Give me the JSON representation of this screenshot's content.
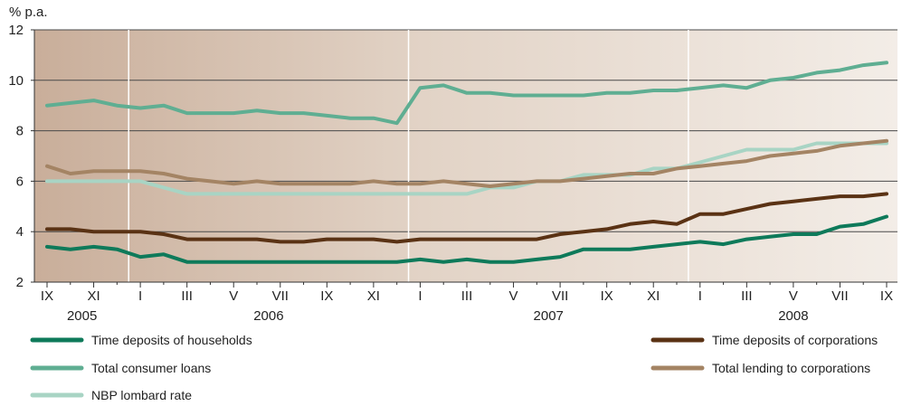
{
  "chart_data": {
    "type": "line",
    "ylabel": "% p.a.",
    "ylim": [
      2,
      12
    ],
    "yticks": [
      2,
      4,
      6,
      8,
      10,
      12
    ],
    "grid": true,
    "x": [
      "IX 2005",
      "X 2005",
      "XI 2005",
      "XII 2005",
      "I 2006",
      "II 2006",
      "III 2006",
      "IV 2006",
      "V 2006",
      "VI 2006",
      "VII 2006",
      "VIII 2006",
      "IX 2006",
      "X 2006",
      "XI 2006",
      "XII 2006",
      "I 2007",
      "II 2007",
      "III 2007",
      "IV 2007",
      "V 2007",
      "VI 2007",
      "VII 2007",
      "VIII 2007",
      "IX 2007",
      "X 2007",
      "XI 2007",
      "XII 2007",
      "I 2008",
      "II 2008",
      "III 2008",
      "IV 2008",
      "V 2008",
      "VI 2008",
      "VII 2008",
      "VIII 2008",
      "IX 2008"
    ],
    "xtick_labels": [
      "IX",
      "XI",
      "I",
      "III",
      "V",
      "VII",
      "IX",
      "XI",
      "I",
      "III",
      "V",
      "VII",
      "IX",
      "XI",
      "I",
      "III",
      "V",
      "VII",
      "IX"
    ],
    "years": [
      "2005",
      "2006",
      "2007",
      "2008"
    ],
    "series": [
      {
        "name": "Time deposits of households",
        "color": "#0e7a5a",
        "values": [
          3.4,
          3.3,
          3.4,
          3.3,
          3.0,
          3.1,
          2.8,
          2.8,
          2.8,
          2.8,
          2.8,
          2.8,
          2.8,
          2.8,
          2.8,
          2.8,
          2.9,
          2.8,
          2.9,
          2.8,
          2.8,
          2.9,
          3.0,
          3.3,
          3.3,
          3.3,
          3.4,
          3.5,
          3.6,
          3.5,
          3.7,
          3.8,
          3.9,
          3.9,
          4.2,
          4.3,
          4.6
        ]
      },
      {
        "name": "Total consumer loans",
        "color": "#5fae92",
        "values": [
          9.0,
          9.1,
          9.2,
          9.0,
          8.9,
          9.0,
          8.7,
          8.7,
          8.7,
          8.8,
          8.7,
          8.7,
          8.6,
          8.5,
          8.5,
          8.3,
          9.7,
          9.8,
          9.5,
          9.5,
          9.4,
          9.4,
          9.4,
          9.4,
          9.5,
          9.5,
          9.6,
          9.6,
          9.7,
          9.8,
          9.7,
          10.0,
          10.1,
          10.3,
          10.4,
          10.6,
          10.7
        ]
      },
      {
        "name": "NBP lombard rate",
        "color": "#a8d4c4",
        "values": [
          6.0,
          6.0,
          6.0,
          6.0,
          6.0,
          5.75,
          5.5,
          5.5,
          5.5,
          5.5,
          5.5,
          5.5,
          5.5,
          5.5,
          5.5,
          5.5,
          5.5,
          5.5,
          5.5,
          5.75,
          5.75,
          6.0,
          6.0,
          6.25,
          6.25,
          6.25,
          6.5,
          6.5,
          6.75,
          7.0,
          7.25,
          7.25,
          7.25,
          7.5,
          7.5,
          7.5,
          7.5
        ]
      },
      {
        "name": "Time deposits of corporations",
        "color": "#5a3214",
        "values": [
          4.1,
          4.1,
          4.0,
          4.0,
          4.0,
          3.9,
          3.7,
          3.7,
          3.7,
          3.7,
          3.6,
          3.6,
          3.7,
          3.7,
          3.7,
          3.6,
          3.7,
          3.7,
          3.7,
          3.7,
          3.7,
          3.7,
          3.9,
          4.0,
          4.1,
          4.3,
          4.4,
          4.3,
          4.7,
          4.7,
          4.9,
          5.1,
          5.2,
          5.3,
          5.4,
          5.4,
          5.5
        ]
      },
      {
        "name": "Total lending to corporations",
        "color": "#a48464",
        "values": [
          6.6,
          6.3,
          6.4,
          6.4,
          6.4,
          6.3,
          6.1,
          6.0,
          5.9,
          6.0,
          5.9,
          5.9,
          5.9,
          5.9,
          6.0,
          5.9,
          5.9,
          6.0,
          5.9,
          5.8,
          5.9,
          6.0,
          6.0,
          6.1,
          6.2,
          6.3,
          6.3,
          6.5,
          6.6,
          6.7,
          6.8,
          7.0,
          7.1,
          7.2,
          7.4,
          7.5,
          7.6
        ]
      }
    ],
    "legend": [
      {
        "label": "Time deposits of households",
        "color": "#0e7a5a"
      },
      {
        "label": "Total consumer loans",
        "color": "#5fae92"
      },
      {
        "label": "NBP lombard rate",
        "color": "#a8d4c4"
      },
      {
        "label": "Time deposits of corporations",
        "color": "#5a3214"
      },
      {
        "label": "Total lending to corporations",
        "color": "#a48464"
      }
    ]
  }
}
